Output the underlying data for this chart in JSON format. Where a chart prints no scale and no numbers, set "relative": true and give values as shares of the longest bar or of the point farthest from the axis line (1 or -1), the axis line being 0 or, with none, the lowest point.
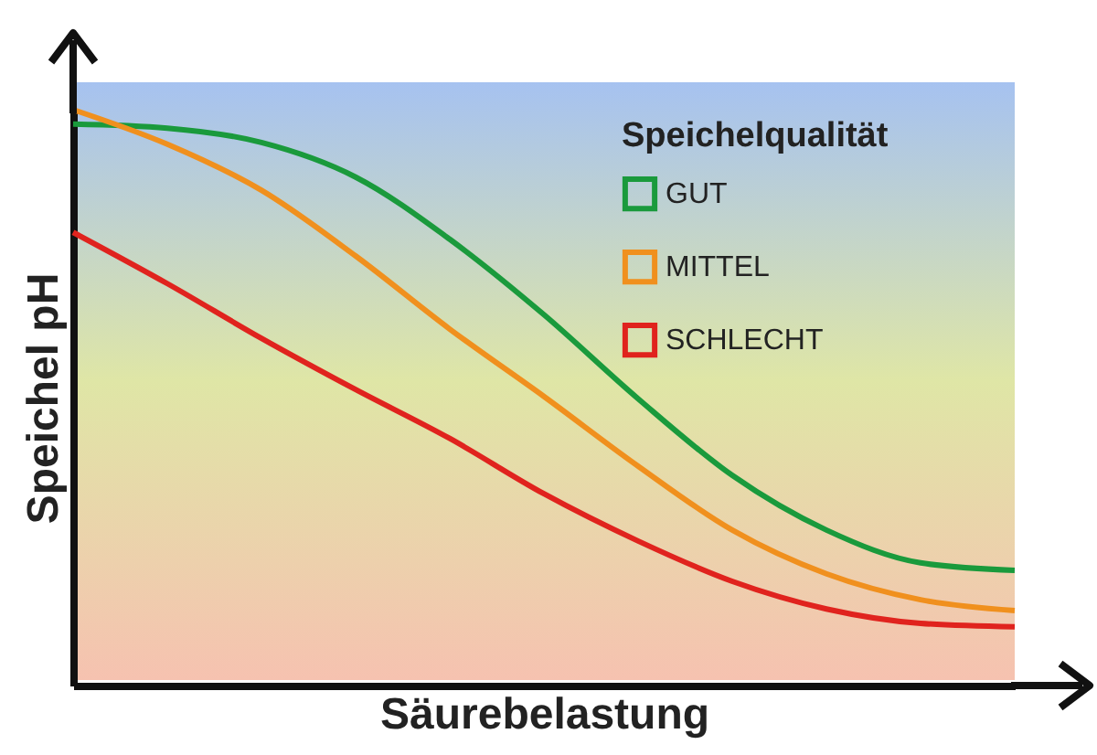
{
  "chart_data": {
    "type": "line",
    "relative": true,
    "xlabel": "Säurebelastung",
    "ylabel": "Speichel pH",
    "legend_title": "Speichelqualität",
    "legend": "top right",
    "categories": [
      null,
      null,
      null,
      null,
      null,
      null,
      null,
      null,
      null,
      null,
      null
    ],
    "series": [
      {
        "name": "GUT",
        "color": "#1a9a3c",
        "values": [
          0.975,
          0.968,
          0.943,
          0.883,
          0.775,
          0.644,
          0.498,
          0.365,
          0.27,
          0.213,
          0.2
        ]
      },
      {
        "name": "MITTEL",
        "color": "#f0901e",
        "values": [
          1,
          0.94,
          0.86,
          0.746,
          0.619,
          0.502,
          0.381,
          0.27,
          0.194,
          0.149,
          0.13
        ]
      },
      {
        "name": "SCHLECHT",
        "color": "#e0231e",
        "values": [
          0.787,
          0.698,
          0.603,
          0.514,
          0.429,
          0.333,
          0.251,
          0.181,
          0.133,
          0.108,
          0.102
        ]
      }
    ]
  }
}
